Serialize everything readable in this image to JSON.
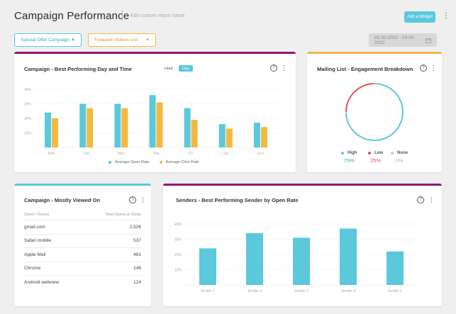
{
  "header": {
    "title": "Campaign Performance",
    "subtitle": "Edit custom report name",
    "add_widget_label": "Add a Widget",
    "more_icon": "vertical-ellipsis"
  },
  "filters": {
    "campaign": "Special Offer Campaign",
    "list": "Frequent Visitors List",
    "date_range": "01-02-2022 - 03-03-2022"
  },
  "colors": {
    "teal": "#5bc8db",
    "yellow": "#f2b942",
    "purple": "#8b1a7d",
    "red": "#e0524a",
    "gray": "#cccccc"
  },
  "widgets": {
    "day_time": {
      "title": "Campaign - Best Performing Day and Time",
      "toggle_hour": "Hour",
      "toggle_day": "Day",
      "legend_open": "Average Open Rate",
      "legend_click": "Average Click Rate"
    },
    "mailing": {
      "title": "Mailing List - Engagement Breakdown",
      "high_label": "High",
      "high_value": "75%",
      "low_label": "Low",
      "low_value": "25%",
      "none_label": "None",
      "none_value": "0%"
    },
    "viewed": {
      "title": "Campaign - Mostly Viewed On",
      "col_client": "Client / Device",
      "col_total": "Total Opens & Clicks",
      "rows": [
        {
          "client": "gmail.com",
          "total": "2,526"
        },
        {
          "client": "Safari mobile",
          "total": "537"
        },
        {
          "client": "Apple Mail",
          "total": "481"
        },
        {
          "client": "Chrome",
          "total": "146"
        },
        {
          "client": "Android webview",
          "total": "124"
        }
      ]
    },
    "senders": {
      "title": "Senders - Best Performing Sender by Open Rate"
    }
  },
  "chart_data": [
    {
      "type": "bar",
      "title": "Campaign - Best Performing Day and Time",
      "categories": [
        "Mon",
        "Tue",
        "Wed",
        "Thu",
        "Fri",
        "Sat",
        "Sun"
      ],
      "series": [
        {
          "name": "Average Open Rate",
          "values": [
            24,
            30,
            30,
            36,
            27,
            16,
            17
          ]
        },
        {
          "name": "Average Click Rate",
          "values": [
            20,
            27,
            27,
            31,
            19,
            13,
            14
          ]
        }
      ],
      "yticks": [
        "10%",
        "20%",
        "30%",
        "40%"
      ],
      "ylim": [
        0,
        40
      ]
    },
    {
      "type": "pie",
      "title": "Mailing List - Engagement Breakdown",
      "categories": [
        "High",
        "Low",
        "None"
      ],
      "values": [
        75,
        25,
        0
      ]
    },
    {
      "type": "bar",
      "title": "Senders - Best Performing Sender by Open Rate",
      "categories": [
        "Sender 1",
        "Sender 2",
        "Sender 3",
        "Sender 4",
        "Sender 5"
      ],
      "values": [
        24,
        34,
        31,
        37,
        22
      ],
      "yticks": [
        "10%",
        "20%",
        "30%",
        "40%"
      ],
      "ylim": [
        0,
        40
      ]
    }
  ]
}
